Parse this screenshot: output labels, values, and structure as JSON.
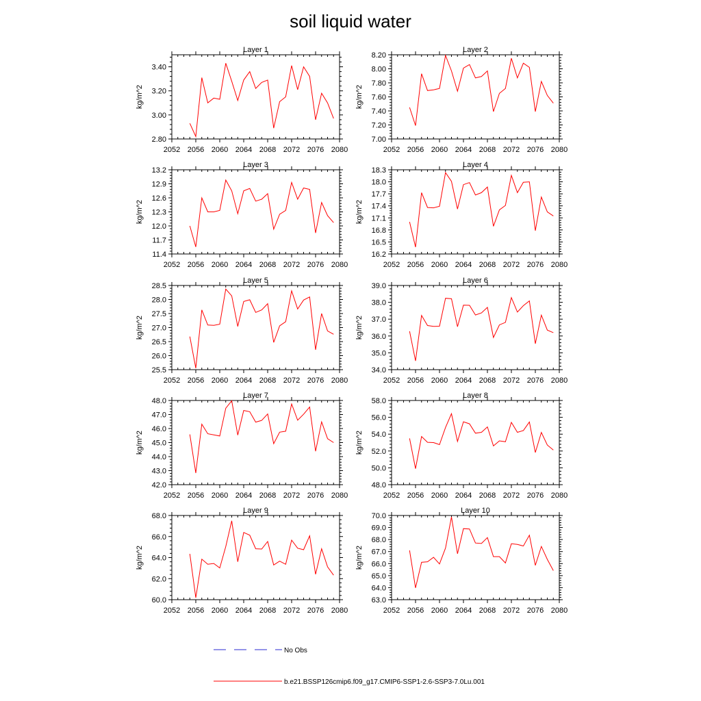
{
  "figure": {
    "title": "soil liquid water",
    "legend": {
      "obs_label": "No Obs",
      "model_label": "b.e21.BSSP126cmip6.f09_g17.CMIP6-SSP1-2.6-SSP3-7.0Lu.001",
      "model_color": "#ff0000",
      "obs_color": "#2a2ad0"
    }
  },
  "chart_data": [
    {
      "type": "line",
      "title": "Layer 1",
      "ylabel": "kg/m^2",
      "xlim": [
        2052,
        2080
      ],
      "x_ticks": [
        2052,
        2056,
        2060,
        2064,
        2068,
        2072,
        2076,
        2080
      ],
      "ylim": [
        2.8,
        3.5
      ],
      "y_ticks": [
        "2.80",
        "3.00",
        "3.20",
        "3.40"
      ],
      "series": [
        {
          "color": "#ff0000",
          "x": [
            2055,
            2056,
            2057,
            2058,
            2059,
            2060,
            2061,
            2062,
            2063,
            2064,
            2065,
            2066,
            2067,
            2068,
            2069,
            2070,
            2071,
            2072,
            2073,
            2074,
            2075,
            2076,
            2077,
            2078,
            2079
          ],
          "values": [
            2.93,
            2.82,
            3.31,
            3.1,
            3.14,
            3.13,
            3.43,
            3.28,
            3.12,
            3.29,
            3.36,
            3.22,
            3.27,
            3.29,
            2.89,
            3.11,
            3.15,
            3.41,
            3.21,
            3.4,
            3.32,
            2.96,
            3.18,
            3.1,
            2.97
          ]
        }
      ]
    },
    {
      "type": "line",
      "title": "Layer 2",
      "ylabel": "kg/m^2",
      "xlim": [
        2052,
        2080
      ],
      "x_ticks": [
        2052,
        2056,
        2060,
        2064,
        2068,
        2072,
        2076,
        2080
      ],
      "ylim": [
        7.0,
        8.2
      ],
      "y_ticks": [
        "7.00",
        "7.20",
        "7.40",
        "7.60",
        "7.80",
        "8.00",
        "8.20"
      ],
      "series": [
        {
          "color": "#ff0000",
          "x": [
            2055,
            2056,
            2057,
            2058,
            2059,
            2060,
            2061,
            2062,
            2063,
            2064,
            2065,
            2066,
            2067,
            2068,
            2069,
            2070,
            2071,
            2072,
            2073,
            2074,
            2075,
            2076,
            2077,
            2078,
            2079
          ],
          "values": [
            7.45,
            7.19,
            7.93,
            7.69,
            7.7,
            7.72,
            8.19,
            7.97,
            7.68,
            8.01,
            8.06,
            7.87,
            7.89,
            7.97,
            7.39,
            7.65,
            7.72,
            8.15,
            7.87,
            8.08,
            8.02,
            7.39,
            7.82,
            7.62,
            7.51
          ]
        }
      ]
    },
    {
      "type": "line",
      "title": "Layer 3",
      "ylabel": "kg/m^2",
      "xlim": [
        2052,
        2080
      ],
      "x_ticks": [
        2052,
        2056,
        2060,
        2064,
        2068,
        2072,
        2076,
        2080
      ],
      "ylim": [
        11.4,
        13.2
      ],
      "y_ticks": [
        "11.4",
        "11.7",
        "12.0",
        "12.3",
        "12.6",
        "12.9",
        "13.2"
      ],
      "series": [
        {
          "color": "#ff0000",
          "x": [
            2055,
            2056,
            2057,
            2058,
            2059,
            2060,
            2061,
            2062,
            2063,
            2064,
            2065,
            2066,
            2067,
            2068,
            2069,
            2070,
            2071,
            2072,
            2073,
            2074,
            2075,
            2076,
            2077,
            2078,
            2079
          ],
          "values": [
            12.0,
            11.55,
            12.6,
            12.3,
            12.3,
            12.33,
            12.98,
            12.75,
            12.26,
            12.75,
            12.8,
            12.53,
            12.57,
            12.69,
            11.93,
            12.25,
            12.33,
            12.93,
            12.57,
            12.81,
            12.78,
            11.85,
            12.5,
            12.22,
            12.07
          ]
        }
      ]
    },
    {
      "type": "line",
      "title": "Layer 4",
      "ylabel": "kg/m^2",
      "xlim": [
        2052,
        2080
      ],
      "x_ticks": [
        2052,
        2056,
        2060,
        2064,
        2068,
        2072,
        2076,
        2080
      ],
      "ylim": [
        16.2,
        18.3
      ],
      "y_ticks": [
        "16.2",
        "16.5",
        "16.8",
        "17.1",
        "17.4",
        "17.7",
        "18.0",
        "18.3"
      ],
      "series": [
        {
          "color": "#ff0000",
          "x": [
            2055,
            2056,
            2057,
            2058,
            2059,
            2060,
            2061,
            2062,
            2063,
            2064,
            2065,
            2066,
            2067,
            2068,
            2069,
            2070,
            2071,
            2072,
            2073,
            2074,
            2075,
            2076,
            2077,
            2078,
            2079
          ],
          "values": [
            17.0,
            16.37,
            17.73,
            17.36,
            17.35,
            17.39,
            18.23,
            18.01,
            17.32,
            17.93,
            17.98,
            17.67,
            17.73,
            17.87,
            16.89,
            17.3,
            17.41,
            18.16,
            17.73,
            17.99,
            18.0,
            16.78,
            17.62,
            17.25,
            17.15
          ]
        }
      ]
    },
    {
      "type": "line",
      "title": "Layer 5",
      "ylabel": "kg/m^2",
      "xlim": [
        2052,
        2080
      ],
      "x_ticks": [
        2052,
        2056,
        2060,
        2064,
        2068,
        2072,
        2076,
        2080
      ],
      "ylim": [
        25.5,
        28.5
      ],
      "y_ticks": [
        "25.5",
        "26.0",
        "26.5",
        "27.0",
        "27.5",
        "28.0",
        "28.5"
      ],
      "series": [
        {
          "color": "#ff0000",
          "x": [
            2055,
            2056,
            2057,
            2058,
            2059,
            2060,
            2061,
            2062,
            2063,
            2064,
            2065,
            2066,
            2067,
            2068,
            2069,
            2070,
            2071,
            2072,
            2073,
            2074,
            2075,
            2076,
            2077,
            2078,
            2079
          ],
          "values": [
            26.68,
            25.55,
            27.63,
            27.09,
            27.08,
            27.12,
            28.37,
            28.13,
            27.04,
            27.93,
            27.99,
            27.54,
            27.63,
            27.85,
            26.47,
            27.06,
            27.21,
            28.31,
            27.66,
            27.98,
            28.09,
            26.21,
            27.5,
            26.88,
            26.76
          ]
        }
      ]
    },
    {
      "type": "line",
      "title": "Layer 6",
      "ylabel": "kg/m^2",
      "xlim": [
        2052,
        2080
      ],
      "x_ticks": [
        2052,
        2056,
        2060,
        2064,
        2068,
        2072,
        2076,
        2080
      ],
      "ylim": [
        34.0,
        39.0
      ],
      "y_ticks": [
        "34.0",
        "35.0",
        "36.0",
        "37.0",
        "38.0",
        "39.0"
      ],
      "series": [
        {
          "color": "#ff0000",
          "x": [
            2055,
            2056,
            2057,
            2058,
            2059,
            2060,
            2061,
            2062,
            2063,
            2064,
            2065,
            2066,
            2067,
            2068,
            2069,
            2070,
            2071,
            2072,
            2073,
            2074,
            2075,
            2076,
            2077,
            2078,
            2079
          ],
          "values": [
            36.28,
            34.52,
            37.22,
            36.62,
            36.57,
            36.58,
            38.24,
            38.21,
            36.55,
            37.83,
            37.82,
            37.25,
            37.37,
            37.7,
            35.91,
            36.66,
            36.81,
            38.28,
            37.42,
            37.8,
            38.08,
            35.54,
            37.24,
            36.35,
            36.2
          ]
        }
      ]
    },
    {
      "type": "line",
      "title": "Layer 7",
      "ylabel": "kg/m^2",
      "xlim": [
        2052,
        2080
      ],
      "x_ticks": [
        2052,
        2056,
        2060,
        2064,
        2068,
        2072,
        2076,
        2080
      ],
      "ylim": [
        42.0,
        48.0
      ],
      "y_ticks": [
        "42.0",
        "43.0",
        "44.0",
        "45.0",
        "46.0",
        "47.0",
        "48.0"
      ],
      "series": [
        {
          "color": "#ff0000",
          "x": [
            2055,
            2056,
            2057,
            2058,
            2059,
            2060,
            2061,
            2062,
            2063,
            2064,
            2065,
            2066,
            2067,
            2068,
            2069,
            2070,
            2071,
            2072,
            2073,
            2074,
            2075,
            2076,
            2077,
            2078,
            2079
          ],
          "values": [
            45.58,
            42.83,
            46.31,
            45.63,
            45.55,
            45.47,
            47.45,
            47.98,
            45.53,
            47.29,
            47.2,
            46.46,
            46.58,
            47.04,
            44.92,
            45.74,
            45.81,
            47.75,
            46.59,
            47.02,
            47.53,
            44.38,
            46.48,
            45.28,
            45.0
          ]
        }
      ]
    },
    {
      "type": "line",
      "title": "Layer 8",
      "ylabel": "kg/m^2",
      "xlim": [
        2052,
        2080
      ],
      "x_ticks": [
        2052,
        2056,
        2060,
        2064,
        2068,
        2072,
        2076,
        2080
      ],
      "ylim": [
        48.0,
        58.0
      ],
      "y_ticks": [
        "48.0",
        "50.0",
        "52.0",
        "54.0",
        "56.0",
        "58.0"
      ],
      "series": [
        {
          "color": "#ff0000",
          "x": [
            2055,
            2056,
            2057,
            2058,
            2059,
            2060,
            2061,
            2062,
            2063,
            2064,
            2065,
            2066,
            2067,
            2068,
            2069,
            2070,
            2071,
            2072,
            2073,
            2074,
            2075,
            2076,
            2077,
            2078,
            2079
          ],
          "values": [
            53.5,
            49.9,
            53.72,
            53.03,
            53.0,
            52.76,
            54.8,
            56.43,
            53.13,
            55.47,
            55.23,
            54.11,
            54.22,
            54.86,
            52.6,
            53.2,
            53.1,
            55.4,
            54.22,
            54.43,
            55.45,
            51.82,
            54.2,
            52.71,
            52.11
          ]
        }
      ]
    },
    {
      "type": "line",
      "title": "Layer 9",
      "ylabel": "kg/m^2",
      "xlim": [
        2052,
        2080
      ],
      "x_ticks": [
        2052,
        2056,
        2060,
        2064,
        2068,
        2072,
        2076,
        2080
      ],
      "ylim": [
        60.0,
        68.0
      ],
      "y_ticks": [
        "60.0",
        "62.0",
        "64.0",
        "66.0",
        "68.0"
      ],
      "series": [
        {
          "color": "#ff0000",
          "x": [
            2055,
            2056,
            2057,
            2058,
            2059,
            2060,
            2061,
            2062,
            2063,
            2064,
            2065,
            2066,
            2067,
            2068,
            2069,
            2070,
            2071,
            2072,
            2073,
            2074,
            2075,
            2076,
            2077,
            2078,
            2079
          ],
          "values": [
            64.35,
            60.18,
            63.85,
            63.37,
            63.44,
            63.01,
            65.05,
            67.49,
            63.6,
            66.39,
            66.13,
            64.84,
            64.81,
            65.53,
            63.3,
            63.66,
            63.36,
            65.66,
            64.89,
            64.75,
            66.07,
            62.41,
            64.84,
            63.12,
            62.33
          ]
        }
      ]
    },
    {
      "type": "line",
      "title": "Layer 10",
      "ylabel": "kg/m^2",
      "xlim": [
        2052,
        2080
      ],
      "x_ticks": [
        2052,
        2056,
        2060,
        2064,
        2068,
        2072,
        2076,
        2080
      ],
      "ylim": [
        63.0,
        70.0
      ],
      "y_ticks": [
        "63.0",
        "64.0",
        "65.0",
        "66.0",
        "67.0",
        "68.0",
        "69.0",
        "70.0"
      ],
      "series": [
        {
          "color": "#ff0000",
          "x": [
            2055,
            2056,
            2057,
            2058,
            2059,
            2060,
            2061,
            2062,
            2063,
            2064,
            2065,
            2066,
            2067,
            2068,
            2069,
            2070,
            2071,
            2072,
            2073,
            2074,
            2075,
            2076,
            2077,
            2078,
            2079
          ],
          "values": [
            67.1,
            63.98,
            66.11,
            66.15,
            66.52,
            65.97,
            67.29,
            69.88,
            66.82,
            68.91,
            68.88,
            67.71,
            67.67,
            68.16,
            66.58,
            66.58,
            66.05,
            67.65,
            67.59,
            67.46,
            68.36,
            65.85,
            67.43,
            66.35,
            65.42
          ]
        }
      ]
    }
  ]
}
